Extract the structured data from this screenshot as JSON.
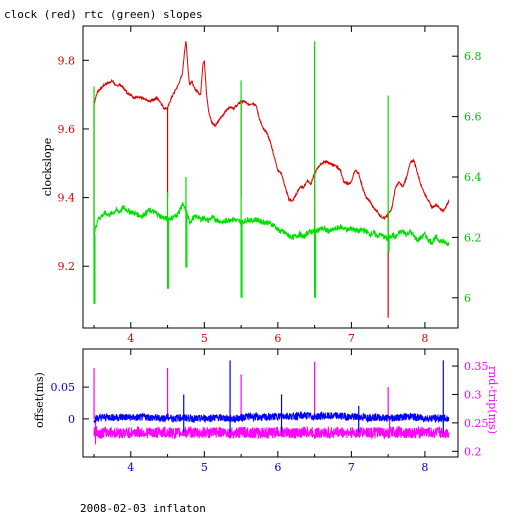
{
  "page": {
    "title": "clock (red) rtc (green) slopes",
    "footer": "2008-02-03 inflaton"
  },
  "colors": {
    "red": "#dd0000",
    "green": "#00e000",
    "blue": "#0000ff",
    "magenta": "#ff00ff",
    "axis": "#000000"
  },
  "chart_data": [
    {
      "type": "line",
      "title": "clock (red) rtc (green) slopes",
      "xlabel": "",
      "ylabel": "clockslope",
      "xlim": [
        3.35,
        8.45
      ],
      "ylim": [
        9.02,
        9.9
      ],
      "y2lim": [
        5.9,
        6.9
      ],
      "x_ticks": [
        "4",
        "5",
        "6",
        "7",
        "8"
      ],
      "x_tick_values": [
        4,
        5,
        6,
        7,
        8
      ],
      "y_ticks": [
        "9.2",
        "9.4",
        "9.6",
        "9.8"
      ],
      "y_tick_values": [
        9.2,
        9.4,
        9.6,
        9.8
      ],
      "y2_ticks": [
        "6",
        "6.2",
        "6.4",
        "6.6",
        "6.8"
      ],
      "y2_tick_values": [
        6.0,
        6.2,
        6.4,
        6.6,
        6.8
      ],
      "series": [
        {
          "name": "clock (red)",
          "axis": "left",
          "x": [
            3.5,
            3.52,
            3.55,
            3.6,
            3.65,
            3.7,
            3.75,
            3.8,
            3.85,
            3.9,
            3.95,
            4.0,
            4.05,
            4.1,
            4.15,
            4.2,
            4.25,
            4.3,
            4.35,
            4.4,
            4.45,
            4.5,
            4.55,
            4.6,
            4.65,
            4.7,
            4.73,
            4.75,
            4.78,
            4.8,
            4.83,
            4.86,
            4.9,
            4.95,
            4.98,
            5.0,
            5.03,
            5.06,
            5.1,
            5.15,
            5.2,
            5.25,
            5.3,
            5.35,
            5.4,
            5.45,
            5.5,
            5.55,
            5.6,
            5.65,
            5.7,
            5.75,
            5.8,
            5.85,
            5.9,
            5.95,
            6.0,
            6.05,
            6.1,
            6.15,
            6.2,
            6.25,
            6.3,
            6.35,
            6.4,
            6.45,
            6.5,
            6.55,
            6.6,
            6.65,
            6.7,
            6.75,
            6.8,
            6.85,
            6.9,
            6.95,
            7.0,
            7.05,
            7.1,
            7.15,
            7.2,
            7.25,
            7.3,
            7.35,
            7.4,
            7.45,
            7.5,
            7.55,
            7.6,
            7.65,
            7.7,
            7.75,
            7.8,
            7.85,
            7.9,
            7.95,
            8.0,
            8.05,
            8.1,
            8.15,
            8.2,
            8.25,
            8.3,
            8.33
          ],
          "values": [
            9.67,
            9.69,
            9.71,
            9.72,
            9.73,
            9.735,
            9.74,
            9.725,
            9.73,
            9.72,
            9.705,
            9.7,
            9.69,
            9.695,
            9.69,
            9.685,
            9.68,
            9.685,
            9.69,
            9.68,
            9.66,
            9.66,
            9.69,
            9.71,
            9.73,
            9.76,
            9.82,
            9.86,
            9.77,
            9.73,
            9.74,
            9.72,
            9.71,
            9.7,
            9.79,
            9.8,
            9.7,
            9.65,
            9.62,
            9.61,
            9.625,
            9.64,
            9.655,
            9.665,
            9.66,
            9.67,
            9.68,
            9.68,
            9.67,
            9.675,
            9.67,
            9.63,
            9.6,
            9.59,
            9.56,
            9.52,
            9.48,
            9.47,
            9.43,
            9.395,
            9.39,
            9.41,
            9.43,
            9.43,
            9.45,
            9.44,
            9.47,
            9.49,
            9.5,
            9.505,
            9.5,
            9.495,
            9.49,
            9.48,
            9.445,
            9.44,
            9.445,
            9.48,
            9.47,
            9.43,
            9.4,
            9.39,
            9.37,
            9.36,
            9.345,
            9.34,
            9.35,
            9.37,
            9.43,
            9.445,
            9.43,
            9.46,
            9.5,
            9.51,
            9.47,
            9.435,
            9.41,
            9.39,
            9.37,
            9.38,
            9.37,
            9.36,
            9.38,
            9.39
          ],
          "spikes": [
            {
              "x": 3.5,
              "to": 9.25
            },
            {
              "x": 4.5,
              "to": 9.4
            },
            {
              "x": 5.5,
              "to": 9.4
            },
            {
              "x": 6.5,
              "to": 9.13
            },
            {
              "x": 7.5,
              "to": 9.05
            }
          ]
        },
        {
          "name": "rtc (green)",
          "axis": "right",
          "x": [
            3.5,
            3.55,
            3.6,
            3.65,
            3.7,
            3.75,
            3.8,
            3.85,
            3.9,
            3.95,
            4.0,
            4.05,
            4.1,
            4.15,
            4.2,
            4.25,
            4.3,
            4.35,
            4.4,
            4.45,
            4.5,
            4.55,
            4.6,
            4.65,
            4.7,
            4.75,
            4.8,
            4.85,
            4.9,
            4.95,
            5.0,
            5.05,
            5.1,
            5.15,
            5.2,
            5.25,
            5.3,
            5.35,
            5.4,
            5.45,
            5.5,
            5.55,
            5.6,
            5.65,
            5.7,
            5.75,
            5.8,
            5.85,
            5.9,
            5.95,
            6.0,
            6.05,
            6.1,
            6.15,
            6.2,
            6.25,
            6.3,
            6.35,
            6.4,
            6.45,
            6.5,
            6.55,
            6.6,
            6.65,
            6.7,
            6.75,
            6.8,
            6.85,
            6.9,
            6.95,
            7.0,
            7.05,
            7.1,
            7.15,
            7.2,
            7.25,
            7.3,
            7.35,
            7.4,
            7.45,
            7.5,
            7.55,
            7.6,
            7.65,
            7.7,
            7.75,
            7.8,
            7.85,
            7.9,
            7.95,
            8.0,
            8.05,
            8.1,
            8.15,
            8.2,
            8.25,
            8.3,
            8.33
          ],
          "values": [
            6.21,
            6.26,
            6.27,
            6.28,
            6.275,
            6.28,
            6.29,
            6.285,
            6.3,
            6.29,
            6.285,
            6.28,
            6.275,
            6.27,
            6.28,
            6.29,
            6.285,
            6.28,
            6.27,
            6.265,
            6.26,
            6.265,
            6.27,
            6.28,
            6.31,
            6.29,
            6.25,
            6.265,
            6.27,
            6.26,
            6.265,
            6.255,
            6.265,
            6.26,
            6.255,
            6.25,
            6.255,
            6.26,
            6.26,
            6.255,
            6.25,
            6.255,
            6.26,
            6.255,
            6.26,
            6.255,
            6.25,
            6.25,
            6.245,
            6.24,
            6.225,
            6.22,
            6.215,
            6.205,
            6.2,
            6.205,
            6.21,
            6.2,
            6.215,
            6.22,
            6.22,
            6.225,
            6.23,
            6.225,
            6.22,
            6.225,
            6.23,
            6.235,
            6.23,
            6.225,
            6.23,
            6.225,
            6.22,
            6.225,
            6.22,
            6.21,
            6.215,
            6.205,
            6.21,
            6.2,
            6.195,
            6.21,
            6.2,
            6.215,
            6.22,
            6.21,
            6.22,
            6.205,
            6.19,
            6.2,
            6.21,
            6.19,
            6.185,
            6.2,
            6.19,
            6.185,
            6.18,
            6.18
          ],
          "spikes": [
            {
              "x": 3.5,
              "from": 6.7,
              "to": 5.98
            },
            {
              "x": 4.5,
              "from": 6.35,
              "to": 6.03
            },
            {
              "x": 4.75,
              "from": 6.4,
              "to": 6.1
            },
            {
              "x": 5.5,
              "from": 6.72,
              "to": 6.0
            },
            {
              "x": 6.5,
              "from": 6.85,
              "to": 6.0
            },
            {
              "x": 7.5,
              "from": 6.67,
              "to": 6.15
            }
          ]
        }
      ]
    },
    {
      "type": "line",
      "xlabel": "",
      "ylabel": "offset(ms)",
      "y2label": "rnd-trip(ms)",
      "xlim": [
        3.35,
        8.45
      ],
      "ylim": [
        -0.06,
        0.11
      ],
      "y2lim": [
        0.19,
        0.38
      ],
      "x_ticks": [
        "4",
        "5",
        "6",
        "7",
        "8"
      ],
      "x_tick_values": [
        4,
        5,
        6,
        7,
        8
      ],
      "y_ticks": [
        "0",
        "0.05"
      ],
      "y_tick_values": [
        0,
        0.05
      ],
      "y2_ticks": [
        "0.2",
        "0.25",
        "0.3",
        "0.35"
      ],
      "y2_tick_values": [
        0.2,
        0.25,
        0.3,
        0.35
      ],
      "series": [
        {
          "name": "offset",
          "axis": "left",
          "x": [
            3.5,
            3.6,
            3.7,
            3.8,
            3.9,
            4.0,
            4.1,
            4.2,
            4.3,
            4.4,
            4.5,
            4.6,
            4.7,
            4.8,
            4.9,
            5.0,
            5.1,
            5.2,
            5.3,
            5.4,
            5.5,
            5.6,
            5.7,
            5.8,
            5.9,
            6.0,
            6.1,
            6.2,
            6.3,
            6.4,
            6.5,
            6.6,
            6.7,
            6.8,
            6.9,
            7.0,
            7.1,
            7.2,
            7.3,
            7.4,
            7.5,
            7.6,
            7.7,
            7.8,
            7.9,
            8.0,
            8.1,
            8.2,
            8.33
          ],
          "values": [
            0.0,
            0.002,
            0.003,
            0.002,
            0.003,
            0.002,
            0.002,
            0.003,
            0.002,
            0.001,
            0.002,
            0.001,
            0.002,
            0.001,
            0.0,
            0.001,
            0.002,
            0.002,
            0.001,
            0.0,
            0.002,
            0.004,
            0.003,
            0.002,
            0.003,
            0.004,
            0.005,
            0.004,
            0.005,
            0.005,
            0.003,
            0.005,
            0.004,
            0.005,
            0.004,
            0.003,
            0.003,
            0.002,
            0.003,
            0.002,
            0.001,
            0.002,
            0.003,
            0.004,
            0.002,
            0.001,
            0.001,
            0.001,
            0.0
          ],
          "spikes": [
            {
              "x": 3.5,
              "to": 0.08
            },
            {
              "x": 3.52,
              "to": -0.04
            },
            {
              "x": 4.5,
              "to": 0.08
            },
            {
              "x": 5.5,
              "to": 0.07
            },
            {
              "x": 6.5,
              "to": 0.09
            },
            {
              "x": 7.5,
              "to": 0.05
            },
            {
              "x": 7.52,
              "to": -0.03
            }
          ]
        },
        {
          "name": "rnd-trip",
          "axis": "right",
          "x": [
            3.5,
            3.6,
            3.7,
            3.8,
            3.9,
            4.0,
            4.1,
            4.2,
            4.3,
            4.4,
            4.5,
            4.6,
            4.7,
            4.8,
            4.9,
            5.0,
            5.1,
            5.2,
            5.3,
            5.4,
            5.5,
            5.6,
            5.7,
            5.8,
            5.9,
            6.0,
            6.1,
            6.2,
            6.3,
            6.4,
            6.5,
            6.6,
            6.7,
            6.8,
            6.9,
            7.0,
            7.1,
            7.2,
            7.3,
            7.4,
            7.5,
            7.6,
            7.7,
            7.8,
            7.9,
            8.0,
            8.1,
            8.2,
            8.33
          ],
          "values": [
            0.235,
            0.232,
            0.234,
            0.233,
            0.232,
            0.233,
            0.234,
            0.233,
            0.232,
            0.234,
            0.233,
            0.232,
            0.233,
            0.234,
            0.232,
            0.233,
            0.232,
            0.234,
            0.233,
            0.232,
            0.233,
            0.234,
            0.232,
            0.233,
            0.232,
            0.234,
            0.233,
            0.232,
            0.233,
            0.234,
            0.232,
            0.233,
            0.232,
            0.234,
            0.233,
            0.232,
            0.233,
            0.234,
            0.232,
            0.233,
            0.232,
            0.234,
            0.233,
            0.232,
            0.233,
            0.234,
            0.232,
            0.233,
            0.232
          ],
          "spikes": [
            {
              "x": 4.72,
              "to": 0.3
            },
            {
              "x": 5.35,
              "to": 0.36
            },
            {
              "x": 6.05,
              "to": 0.3
            },
            {
              "x": 7.1,
              "to": 0.28
            },
            {
              "x": 8.25,
              "to": 0.36
            }
          ]
        }
      ]
    }
  ]
}
